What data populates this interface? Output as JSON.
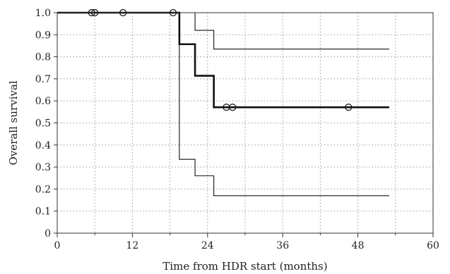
{
  "chart_data": {
    "type": "line",
    "xlabel": "Time from HDR start (months)",
    "ylabel": "Overall survival",
    "xlim": [
      0,
      60
    ],
    "ylim": [
      0,
      1.0
    ],
    "x_ticks": [
      "0",
      "12",
      "24",
      "36",
      "48",
      "60"
    ],
    "y_ticks": [
      "0",
      "0.1",
      "0.2",
      "0.3",
      "0.4",
      "0.5",
      "0.6",
      "0.7",
      "0.8",
      "0.9",
      "1.0"
    ],
    "grid": true,
    "step": true,
    "series": [
      {
        "role": "estimate",
        "x": [
          0,
          19.5,
          22,
          25,
          53
        ],
        "y": [
          1.0,
          0.857,
          0.714,
          0.571,
          0.571
        ]
      },
      {
        "role": "upper",
        "x": [
          0,
          19.5,
          22,
          25,
          53
        ],
        "y": [
          1.0,
          1.0,
          0.92,
          0.835,
          0.835
        ]
      },
      {
        "role": "lower",
        "x": [
          0,
          19.5,
          22,
          25,
          53
        ],
        "y": [
          1.0,
          0.335,
          0.26,
          0.17,
          0.17
        ]
      }
    ],
    "censored": [
      {
        "x": 5.5,
        "y": 1.0
      },
      {
        "x": 6.0,
        "y": 1.0
      },
      {
        "x": 10.5,
        "y": 1.0
      },
      {
        "x": 18.5,
        "y": 1.0
      },
      {
        "x": 27.0,
        "y": 0.571
      },
      {
        "x": 28.0,
        "y": 0.571
      },
      {
        "x": 46.5,
        "y": 0.571
      }
    ]
  }
}
